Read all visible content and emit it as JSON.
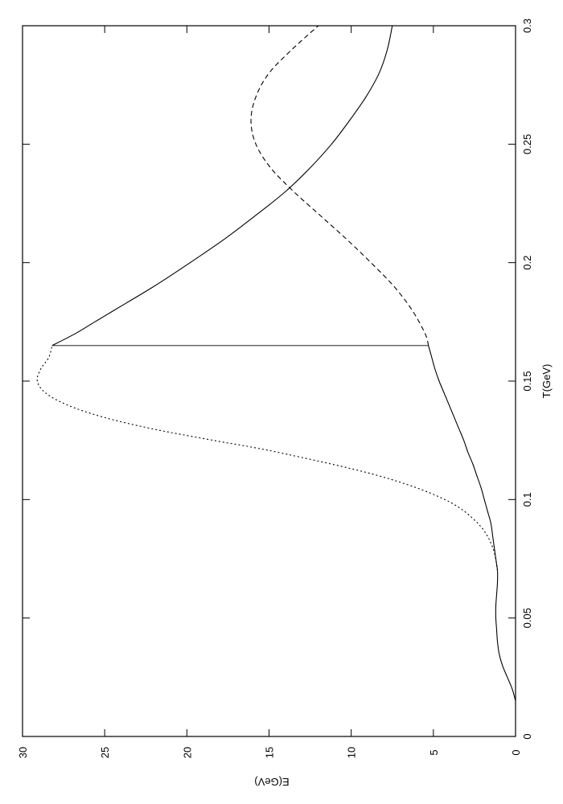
{
  "chart_data": {
    "type": "line",
    "xlabel": "T(GeV)",
    "ylabel": "E(GeV)",
    "xlim": [
      0,
      0.3
    ],
    "ylim": [
      0,
      30
    ],
    "x_ticks": [
      "0",
      "0.05",
      "0.1",
      "0.15",
      "0.2",
      "0.25",
      "0.3"
    ],
    "y_ticks": [
      "0",
      "5",
      "10",
      "15",
      "20",
      "25",
      "30"
    ],
    "grid": false,
    "series": [
      {
        "style": "solid",
        "x": [
          0.015,
          0.02,
          0.025,
          0.03,
          0.035,
          0.04,
          0.045,
          0.05,
          0.055,
          0.06,
          0.065,
          0.07,
          0.075,
          0.08,
          0.085,
          0.09,
          0.095,
          0.1,
          0.105,
          0.11,
          0.115,
          0.12,
          0.125,
          0.13,
          0.135,
          0.14,
          0.145,
          0.15,
          0.155,
          0.16,
          0.165
        ],
        "y": [
          0,
          0.2,
          0.5,
          0.8,
          1.0,
          1.1,
          1.15,
          1.2,
          1.2,
          1.15,
          1.1,
          1.1,
          1.2,
          1.3,
          1.4,
          1.5,
          1.7,
          1.9,
          2.1,
          2.35,
          2.6,
          2.9,
          3.15,
          3.45,
          3.75,
          4.05,
          4.35,
          4.65,
          4.9,
          5.1,
          5.3
        ]
      },
      {
        "style": "solid",
        "x": [
          0.165,
          0.17,
          0.175,
          0.18,
          0.19,
          0.2,
          0.21,
          0.22,
          0.23,
          0.24,
          0.25,
          0.26,
          0.27,
          0.28,
          0.29,
          0.3
        ],
        "y": [
          28.2,
          26.8,
          25.6,
          24.4,
          22.0,
          19.8,
          17.7,
          15.8,
          14.0,
          12.5,
          11.2,
          10.1,
          9.1,
          8.3,
          7.8,
          7.5
        ]
      },
      {
        "style": "dotted",
        "x": [
          0.07,
          0.08,
          0.09,
          0.1,
          0.11,
          0.12,
          0.125,
          0.13,
          0.135,
          0.14,
          0.145,
          0.15,
          0.155,
          0.16,
          0.165
        ],
        "y": [
          1.1,
          1.4,
          2.3,
          4.3,
          8.3,
          14.5,
          18.4,
          22.2,
          25.2,
          27.3,
          28.6,
          29.1,
          28.9,
          28.4,
          28.2
        ]
      },
      {
        "style": "dashed",
        "x": [
          0.165,
          0.17,
          0.18,
          0.19,
          0.2,
          0.21,
          0.22,
          0.23,
          0.24,
          0.25,
          0.26,
          0.27,
          0.28,
          0.29,
          0.3
        ],
        "y": [
          5.3,
          5.5,
          6.3,
          7.4,
          8.8,
          10.3,
          11.9,
          13.5,
          14.9,
          15.8,
          16.1,
          15.8,
          15.0,
          13.6,
          12.0
        ]
      }
    ],
    "vertical_line": {
      "x": 0.165,
      "y": [
        5.3,
        28.2
      ]
    }
  }
}
